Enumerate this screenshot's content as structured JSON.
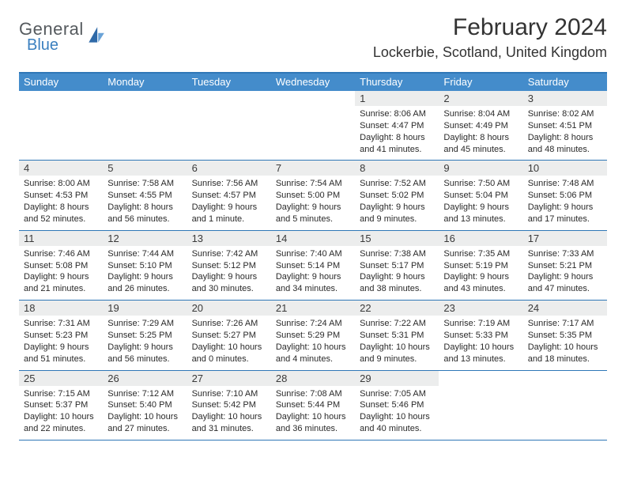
{
  "logo": {
    "general": "General",
    "blue": "Blue"
  },
  "title": "February 2024",
  "location": "Lockerbie, Scotland, United Kingdom",
  "colors": {
    "header_bg": "#448ccb",
    "header_border": "#2f77b7",
    "row_border": "#2f77b7",
    "daynum_bg": "#eceded",
    "text": "#2a2a2a",
    "logo_gray": "#555a5e",
    "logo_blue": "#3a7fbf"
  },
  "day_names": [
    "Sunday",
    "Monday",
    "Tuesday",
    "Wednesday",
    "Thursday",
    "Friday",
    "Saturday"
  ],
  "weeks": [
    [
      null,
      null,
      null,
      null,
      {
        "n": "1",
        "sr": "8:06 AM",
        "ss": "4:47 PM",
        "dl1": "Daylight: 8 hours",
        "dl2": "and 41 minutes."
      },
      {
        "n": "2",
        "sr": "8:04 AM",
        "ss": "4:49 PM",
        "dl1": "Daylight: 8 hours",
        "dl2": "and 45 minutes."
      },
      {
        "n": "3",
        "sr": "8:02 AM",
        "ss": "4:51 PM",
        "dl1": "Daylight: 8 hours",
        "dl2": "and 48 minutes."
      }
    ],
    [
      {
        "n": "4",
        "sr": "8:00 AM",
        "ss": "4:53 PM",
        "dl1": "Daylight: 8 hours",
        "dl2": "and 52 minutes."
      },
      {
        "n": "5",
        "sr": "7:58 AM",
        "ss": "4:55 PM",
        "dl1": "Daylight: 8 hours",
        "dl2": "and 56 minutes."
      },
      {
        "n": "6",
        "sr": "7:56 AM",
        "ss": "4:57 PM",
        "dl1": "Daylight: 9 hours",
        "dl2": "and 1 minute."
      },
      {
        "n": "7",
        "sr": "7:54 AM",
        "ss": "5:00 PM",
        "dl1": "Daylight: 9 hours",
        "dl2": "and 5 minutes."
      },
      {
        "n": "8",
        "sr": "7:52 AM",
        "ss": "5:02 PM",
        "dl1": "Daylight: 9 hours",
        "dl2": "and 9 minutes."
      },
      {
        "n": "9",
        "sr": "7:50 AM",
        "ss": "5:04 PM",
        "dl1": "Daylight: 9 hours",
        "dl2": "and 13 minutes."
      },
      {
        "n": "10",
        "sr": "7:48 AM",
        "ss": "5:06 PM",
        "dl1": "Daylight: 9 hours",
        "dl2": "and 17 minutes."
      }
    ],
    [
      {
        "n": "11",
        "sr": "7:46 AM",
        "ss": "5:08 PM",
        "dl1": "Daylight: 9 hours",
        "dl2": "and 21 minutes."
      },
      {
        "n": "12",
        "sr": "7:44 AM",
        "ss": "5:10 PM",
        "dl1": "Daylight: 9 hours",
        "dl2": "and 26 minutes."
      },
      {
        "n": "13",
        "sr": "7:42 AM",
        "ss": "5:12 PM",
        "dl1": "Daylight: 9 hours",
        "dl2": "and 30 minutes."
      },
      {
        "n": "14",
        "sr": "7:40 AM",
        "ss": "5:14 PM",
        "dl1": "Daylight: 9 hours",
        "dl2": "and 34 minutes."
      },
      {
        "n": "15",
        "sr": "7:38 AM",
        "ss": "5:17 PM",
        "dl1": "Daylight: 9 hours",
        "dl2": "and 38 minutes."
      },
      {
        "n": "16",
        "sr": "7:35 AM",
        "ss": "5:19 PM",
        "dl1": "Daylight: 9 hours",
        "dl2": "and 43 minutes."
      },
      {
        "n": "17",
        "sr": "7:33 AM",
        "ss": "5:21 PM",
        "dl1": "Daylight: 9 hours",
        "dl2": "and 47 minutes."
      }
    ],
    [
      {
        "n": "18",
        "sr": "7:31 AM",
        "ss": "5:23 PM",
        "dl1": "Daylight: 9 hours",
        "dl2": "and 51 minutes."
      },
      {
        "n": "19",
        "sr": "7:29 AM",
        "ss": "5:25 PM",
        "dl1": "Daylight: 9 hours",
        "dl2": "and 56 minutes."
      },
      {
        "n": "20",
        "sr": "7:26 AM",
        "ss": "5:27 PM",
        "dl1": "Daylight: 10 hours",
        "dl2": "and 0 minutes."
      },
      {
        "n": "21",
        "sr": "7:24 AM",
        "ss": "5:29 PM",
        "dl1": "Daylight: 10 hours",
        "dl2": "and 4 minutes."
      },
      {
        "n": "22",
        "sr": "7:22 AM",
        "ss": "5:31 PM",
        "dl1": "Daylight: 10 hours",
        "dl2": "and 9 minutes."
      },
      {
        "n": "23",
        "sr": "7:19 AM",
        "ss": "5:33 PM",
        "dl1": "Daylight: 10 hours",
        "dl2": "and 13 minutes."
      },
      {
        "n": "24",
        "sr": "7:17 AM",
        "ss": "5:35 PM",
        "dl1": "Daylight: 10 hours",
        "dl2": "and 18 minutes."
      }
    ],
    [
      {
        "n": "25",
        "sr": "7:15 AM",
        "ss": "5:37 PM",
        "dl1": "Daylight: 10 hours",
        "dl2": "and 22 minutes."
      },
      {
        "n": "26",
        "sr": "7:12 AM",
        "ss": "5:40 PM",
        "dl1": "Daylight: 10 hours",
        "dl2": "and 27 minutes."
      },
      {
        "n": "27",
        "sr": "7:10 AM",
        "ss": "5:42 PM",
        "dl1": "Daylight: 10 hours",
        "dl2": "and 31 minutes."
      },
      {
        "n": "28",
        "sr": "7:08 AM",
        "ss": "5:44 PM",
        "dl1": "Daylight: 10 hours",
        "dl2": "and 36 minutes."
      },
      {
        "n": "29",
        "sr": "7:05 AM",
        "ss": "5:46 PM",
        "dl1": "Daylight: 10 hours",
        "dl2": "and 40 minutes."
      },
      null,
      null
    ]
  ],
  "labels": {
    "sunrise_prefix": "Sunrise: ",
    "sunset_prefix": "Sunset: "
  }
}
